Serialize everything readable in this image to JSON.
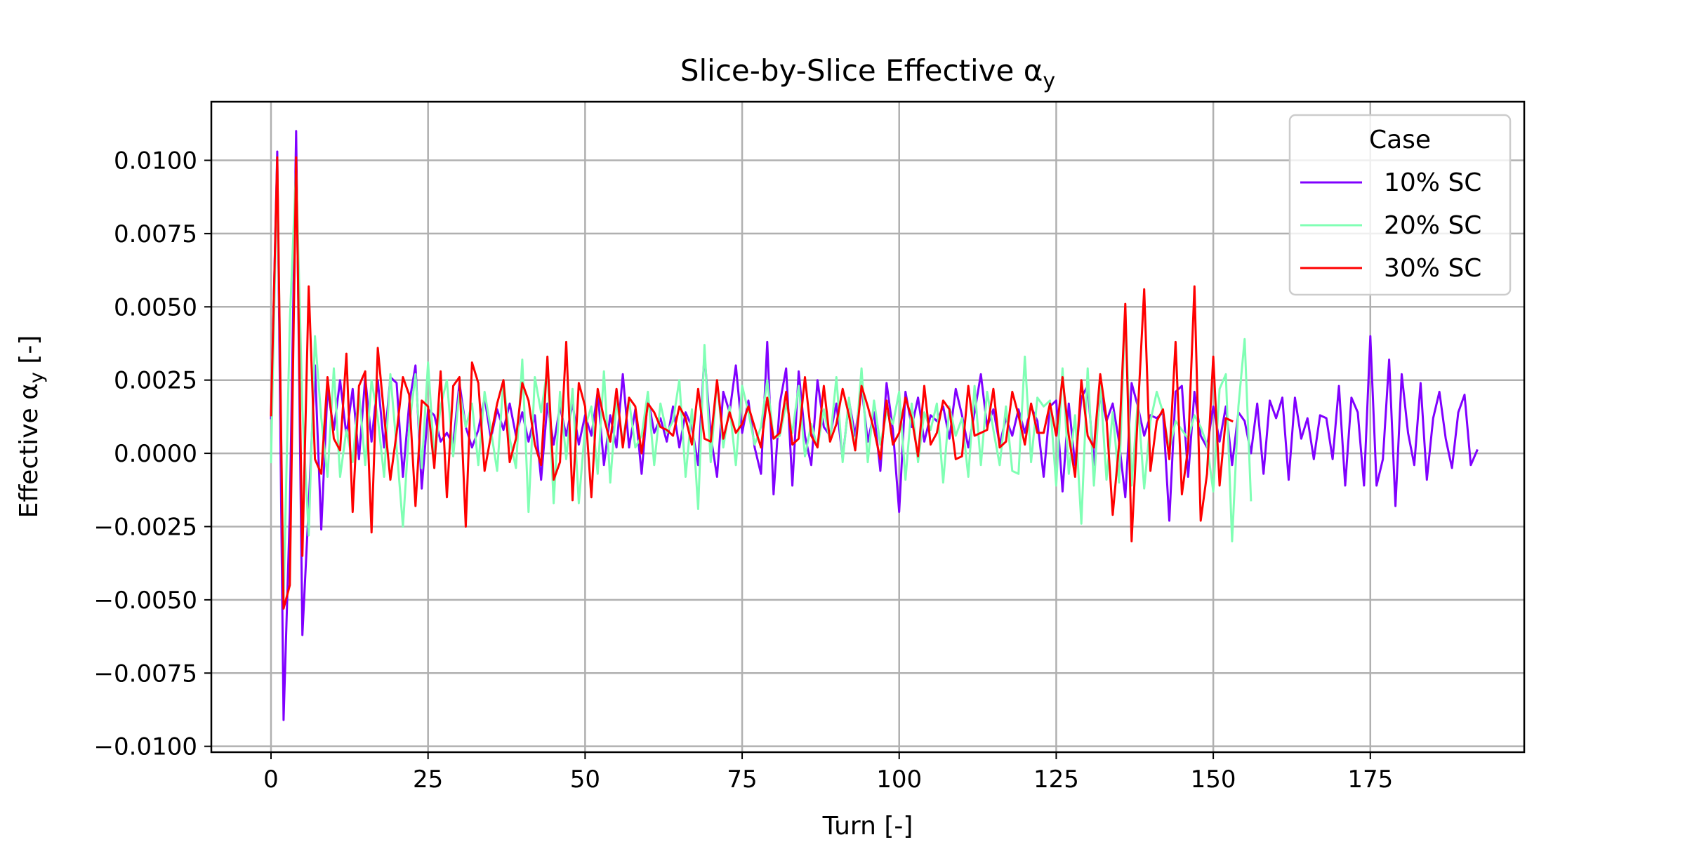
{
  "chart_data": {
    "type": "line",
    "title": "Slice-by-Slice Effective α",
    "title_sub": "y",
    "xlabel": "Turn [-]",
    "ylabel_main": "Effective α",
    "ylabel_sub": "y",
    "ylabel_tail": " [-]",
    "xlim": [
      -9.5,
      199.5
    ],
    "ylim": [
      -0.0102,
      0.012
    ],
    "grid": true,
    "x_ticks": [
      0,
      25,
      50,
      75,
      100,
      125,
      150,
      175
    ],
    "x_tick_labels": [
      "0",
      "25",
      "50",
      "75",
      "100",
      "125",
      "150",
      "175"
    ],
    "y_ticks": [
      0.01,
      0.0075,
      0.005,
      0.0025,
      0.0,
      -0.0025,
      -0.005,
      -0.0075,
      -0.01
    ],
    "y_tick_labels": [
      "0.0100",
      "0.0075",
      "0.0050",
      "0.0025",
      "0.0000",
      "−0.0025",
      "−0.0050",
      "−0.0075",
      "−0.0100"
    ],
    "legend": {
      "title": "Case",
      "position": "upper right"
    },
    "series": [
      {
        "name": "10% SC",
        "color": "#8000ff",
        "values": [
          0.0012,
          0.0103,
          -0.0091,
          -0.002,
          0.011,
          -0.0062,
          -0.0018,
          0.003,
          -0.0026,
          0.0022,
          0.0008,
          0.0025,
          0.0006,
          0.0022,
          -0.0002,
          0.0026,
          0.0004,
          0.0025,
          0.0002,
          0.0026,
          0.0024,
          -0.0008,
          0.0017,
          0.003,
          -0.0012,
          0.0015,
          0.0013,
          0.0004,
          0.0007,
          0.0003,
          0.0024,
          0.0009,
          0.0002,
          0.0008,
          0.0019,
          0.0005,
          0.0015,
          0.0008,
          0.0017,
          0.0006,
          0.0014,
          0.0004,
          0.0013,
          -0.0009,
          0.0017,
          0.0003,
          0.0016,
          0.0006,
          0.0017,
          0.0003,
          0.0013,
          0.0006,
          0.0021,
          -0.0004,
          0.0013,
          0.0002,
          0.0027,
          0.0002,
          0.0015,
          -0.0007,
          0.0019,
          0.0007,
          0.0012,
          0.0004,
          0.0016,
          0.0002,
          0.0014,
          0.0009,
          -0.0004,
          0.0034,
          0.0006,
          -0.0008,
          0.0021,
          0.0014,
          0.003,
          0.0007,
          0.0018,
          0.0002,
          -0.0007,
          0.0038,
          -0.0014,
          0.0017,
          0.0029,
          -0.0011,
          0.0028,
          0.0006,
          -0.0004,
          0.0025,
          0.0009,
          0.0006,
          0.0017,
          -0.0002,
          0.0018,
          0.0006,
          0.0023,
          0.0004,
          0.0014,
          -0.0006,
          0.0024,
          0.0008,
          -0.002,
          0.0021,
          0.0009,
          0.0019,
          0.0004,
          0.0013,
          0.0011,
          0.0016,
          0.0005,
          0.0022,
          0.0013,
          0.0002,
          0.0014,
          0.0027,
          0.0009,
          0.0015,
          0.0003,
          0.0012,
          0.0006,
          0.0015,
          0.0007,
          0.0016,
          0.0011,
          -0.0008,
          0.0016,
          0.0018,
          -0.0013,
          0.0017,
          -0.0004,
          0.0019,
          0.0023,
          -0.0004,
          0.0021,
          0.0011,
          0.0017,
          0.0004,
          -0.0015,
          0.0024,
          0.0016,
          0.0006,
          0.0013,
          0.0012,
          0.0014,
          -0.0023,
          0.0021,
          0.0023,
          -0.0008,
          0.0021,
          0.0006,
          0.0002,
          0.0016,
          0.0004,
          0.0016,
          -0.0004,
          0.0014,
          0.0011,
          0.0,
          0.0017,
          -0.0007,
          0.0018,
          0.0012,
          0.0019,
          -0.0009,
          0.0019,
          0.0005,
          0.0012,
          -0.0002,
          0.0013,
          0.0012,
          -0.0002,
          0.0023,
          -0.0011,
          0.0019,
          0.0014,
          -0.0011,
          0.004,
          -0.0011,
          -0.0002,
          0.0032,
          -0.0018,
          0.0027,
          0.0007,
          -0.0004,
          0.0024,
          -0.0009,
          0.0012,
          0.0021,
          0.0005,
          -0.0005,
          0.0014,
          0.002,
          -0.0004,
          0.0001
        ]
      },
      {
        "name": "20% SC",
        "color": "#80ffb4",
        "values": [
          -0.0003,
          0.0098,
          -0.005,
          0.0045,
          0.0098,
          0.0015,
          -0.0028,
          0.004,
          0.0012,
          -0.0008,
          0.0029,
          -0.0008,
          0.0008,
          -0.0003,
          0.0021,
          -0.0004,
          0.0025,
          0.0012,
          -0.0008,
          0.0027,
          0.0002,
          -0.0025,
          0.0009,
          0.0027,
          -0.0005,
          0.0031,
          -0.0002,
          0.0016,
          0.0025,
          -0.0001,
          0.0021,
          0.0009,
          0.0017,
          -0.0004,
          0.0021,
          0.0008,
          -0.0006,
          0.0025,
          0.0005,
          -0.0005,
          0.0032,
          -0.002,
          0.0026,
          0.0014,
          0.0029,
          -0.0017,
          0.0021,
          -0.0002,
          0.0022,
          -0.0017,
          0.0009,
          0.0016,
          -0.0007,
          0.0028,
          -0.001,
          0.0018,
          0.0004,
          0.0018,
          0.0002,
          0.0006,
          0.0021,
          -0.0004,
          0.0017,
          0.0007,
          0.0011,
          0.0025,
          -0.0008,
          0.0015,
          -0.0019,
          0.0037,
          -0.0003,
          0.0025,
          0.0002,
          0.0016,
          -0.0004,
          0.0023,
          0.0014,
          0.0003,
          0.0009,
          0.0025,
          0.0005,
          0.0006,
          0.0017,
          0.0007,
          0.0023,
          -0.0001,
          0.001,
          0.0002,
          0.0015,
          0.0004,
          0.0026,
          -0.0003,
          0.0019,
          0.0001,
          0.0029,
          -0.0003,
          0.0018,
          0.0003,
          0.0014,
          0.001,
          0.0021,
          -0.0009,
          0.0017,
          -0.0003,
          0.0014,
          0.0008,
          0.0017,
          -0.001,
          0.0016,
          0.0006,
          0.0012,
          -0.0008,
          0.0023,
          -0.0004,
          0.0021,
          0.0008,
          -0.0004,
          0.0016,
          -0.0006,
          -0.0007,
          0.0033,
          -0.0003,
          0.0019,
          0.0016,
          0.0018,
          -0.0011,
          0.0029,
          -0.0007,
          0.0013,
          -0.0024,
          0.0029,
          -0.0011,
          0.0024,
          -0.0009,
          0.0014,
          -0.001,
          0.0049,
          -0.0011,
          0.0018,
          -0.0012,
          0.0011,
          0.0021,
          0.0014,
          0.0001,
          0.0011,
          0.0008,
          0.0005,
          0.0013,
          0.0009,
          0.0003,
          -0.0013,
          0.0022,
          0.0027,
          -0.003,
          0.0016,
          0.0039,
          -0.0016
        ]
      },
      {
        "name": "30% SC",
        "color": "#ff0000",
        "values": [
          0.0013,
          0.0101,
          -0.0053,
          -0.0045,
          0.0101,
          -0.0035,
          0.0057,
          -0.0002,
          -0.0007,
          0.0026,
          0.0005,
          0.0001,
          0.0034,
          -0.002,
          0.0023,
          0.0028,
          -0.0027,
          0.0036,
          0.0013,
          -0.0009,
          0.0007,
          0.0026,
          0.002,
          -0.0018,
          0.0018,
          0.0016,
          -0.0005,
          0.0028,
          -0.0015,
          0.0023,
          0.0026,
          -0.0025,
          0.0031,
          0.0024,
          -0.0006,
          0.0006,
          0.0017,
          0.0025,
          -0.0003,
          0.0005,
          0.0024,
          0.0018,
          0.0003,
          -0.0004,
          0.0033,
          -0.0009,
          -0.0003,
          0.0038,
          -0.0016,
          0.0024,
          0.0016,
          -0.0015,
          0.0022,
          0.0012,
          0.0004,
          0.0022,
          0.0002,
          0.0019,
          0.0016,
          0.0,
          0.0017,
          0.0014,
          0.0009,
          0.0008,
          0.0006,
          0.0016,
          0.0012,
          0.0003,
          0.0022,
          0.0005,
          0.0004,
          0.0025,
          0.0005,
          0.0014,
          0.0007,
          0.001,
          0.0016,
          0.0009,
          0.0002,
          0.0019,
          0.0005,
          0.0007,
          0.0021,
          0.0003,
          0.0005,
          0.0026,
          0.0006,
          0.0002,
          0.0023,
          0.0004,
          0.001,
          0.0022,
          0.0013,
          0.0001,
          0.0023,
          0.0016,
          0.0008,
          -0.0002,
          0.0018,
          0.0003,
          0.0007,
          0.0019,
          0.0012,
          -0.0001,
          0.0023,
          0.0003,
          0.0007,
          0.0018,
          0.0015,
          -0.0002,
          -0.0001,
          0.0023,
          0.0006,
          0.0007,
          0.0008,
          0.0022,
          0.0002,
          0.0004,
          0.0021,
          0.0013,
          0.0003,
          0.0017,
          0.0007,
          0.0007,
          0.0017,
          0.0006,
          0.0026,
          0.0006,
          -0.0008,
          0.0025,
          0.0006,
          0.0002,
          0.0027,
          0.0012,
          -0.0021,
          0.0003,
          0.0051,
          -0.003,
          0.0014,
          0.0056,
          -0.0006,
          0.0011,
          0.0015,
          -0.0002,
          0.0038,
          -0.0014,
          0.0002,
          0.0057,
          -0.0023,
          -0.0007,
          0.0033,
          -0.0011,
          0.0012,
          0.0011
        ]
      }
    ]
  }
}
